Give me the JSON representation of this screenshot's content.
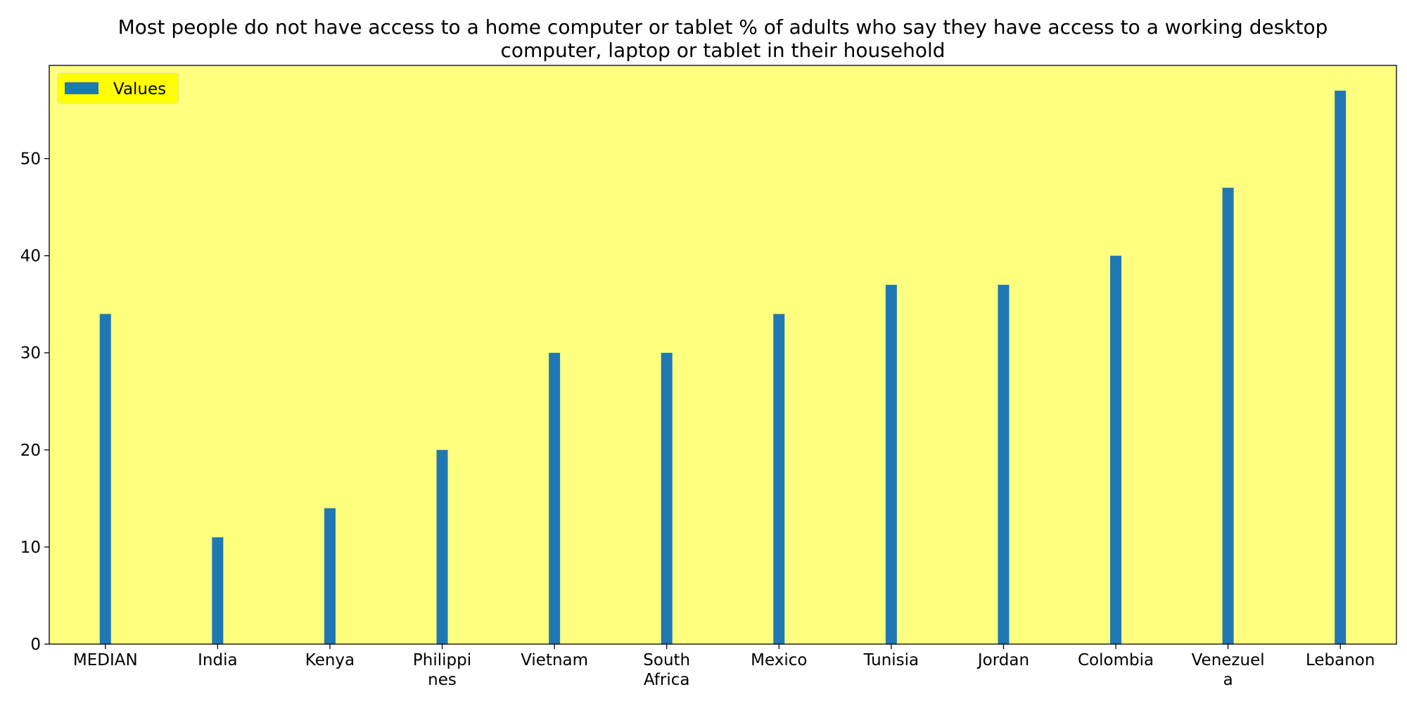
{
  "chart_data": {
    "type": "bar",
    "title": "Most people do not have access to a home computer or tablet % of adults who say they have access to a working desktop computer, laptop or tablet in their household",
    "title_lines": [
      "Most people do not have access to a home computer or tablet % of adults who say they have access to a working desktop",
      "computer, laptop or tablet in their household"
    ],
    "categories": [
      "MEDIAN",
      "India",
      "Kenya",
      "Philippines",
      "Vietnam",
      "South Africa",
      "Mexico",
      "Tunisia",
      "Jordan",
      "Colombia",
      "Venezuela",
      "Lebanon"
    ],
    "category_labels": [
      [
        "MEDIAN"
      ],
      [
        "India"
      ],
      [
        "Kenya"
      ],
      [
        "Philippi",
        "nes"
      ],
      [
        "Vietnam"
      ],
      [
        "South",
        "Africa"
      ],
      [
        "Mexico"
      ],
      [
        "Tunisia"
      ],
      [
        "Jordan"
      ],
      [
        "Colombia"
      ],
      [
        "Venezuel",
        "a"
      ],
      [
        "Lebanon"
      ]
    ],
    "series": [
      {
        "name": "Values",
        "values": [
          34,
          11,
          14,
          20,
          30,
          30,
          34,
          37,
          37,
          40,
          47,
          57
        ],
        "color": "#1f77b4"
      }
    ],
    "xlabel": "",
    "ylabel": "",
    "ylim": [
      0,
      59.6
    ],
    "yticks": [
      0,
      10,
      20,
      30,
      40,
      50
    ],
    "grid": false,
    "legend_position": "top-left",
    "plot_background": "#ffff80",
    "legend_background": "#ffff00"
  }
}
